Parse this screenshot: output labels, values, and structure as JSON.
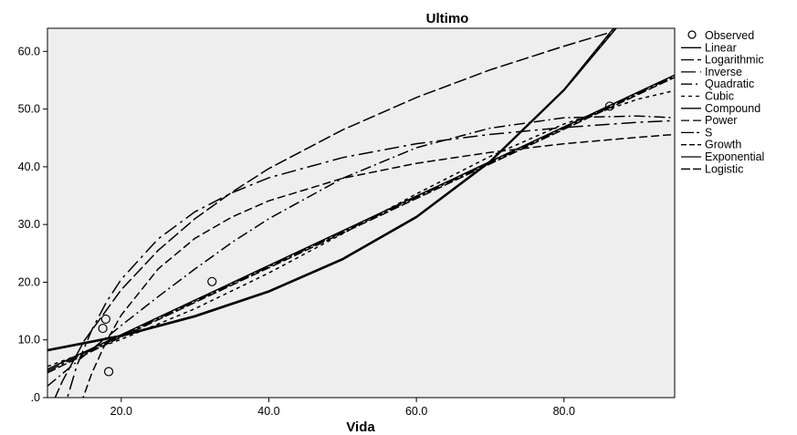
{
  "chart_data": {
    "type": "line",
    "title": "Ultimo",
    "xlabel": "Vida",
    "ylabel": "",
    "xlim": [
      10,
      95
    ],
    "ylim": [
      0,
      64
    ],
    "x_ticks": [
      20,
      40,
      60,
      80
    ],
    "x_tick_labels": [
      "20.0",
      "40.0",
      "60.0",
      "80.0"
    ],
    "y_ticks": [
      0,
      10,
      20,
      30,
      40,
      50,
      60
    ],
    "y_tick_labels": [
      ".0",
      "10.0",
      "20.0",
      "30.0",
      "40.0",
      "50.0",
      "60.0"
    ],
    "grid": false,
    "legend_position": "right",
    "plot_background": "#eeeeee",
    "observed": {
      "name": "Observed",
      "points": [
        {
          "x": 17.5,
          "y": 12.0
        },
        {
          "x": 17.9,
          "y": 13.6
        },
        {
          "x": 18.3,
          "y": 4.5
        },
        {
          "x": 32.3,
          "y": 20.1
        },
        {
          "x": 86.2,
          "y": 50.5
        }
      ]
    },
    "series": [
      {
        "name": "Linear",
        "dash": "",
        "points": [
          [
            10,
            4.9
          ],
          [
            20,
            10.9
          ],
          [
            30,
            16.9
          ],
          [
            40,
            22.9
          ],
          [
            50,
            28.9
          ],
          [
            60,
            34.9
          ],
          [
            70,
            40.9
          ],
          [
            80,
            46.9
          ],
          [
            90,
            52.9
          ],
          [
            95,
            55.9
          ]
        ]
      },
      {
        "name": "Logarithmic",
        "dash": "14,4",
        "points": [
          [
            10,
            -3.0
          ],
          [
            12,
            2.8
          ],
          [
            15,
            9.9
          ],
          [
            20,
            18.7
          ],
          [
            25,
            25.5
          ],
          [
            30,
            31.0
          ],
          [
            35,
            35.6
          ],
          [
            40,
            39.7
          ],
          [
            50,
            46.4
          ],
          [
            60,
            52.0
          ],
          [
            70,
            56.8
          ],
          [
            80,
            60.9
          ],
          [
            86,
            63.2
          ]
        ]
      },
      {
        "name": "Inverse",
        "dash": "16,5,3,5",
        "points": [
          [
            12,
            -3.0
          ],
          [
            14,
            5.6
          ],
          [
            16,
            11.7
          ],
          [
            18,
            16.6
          ],
          [
            20,
            20.5
          ],
          [
            25,
            27.5
          ],
          [
            30,
            32.2
          ],
          [
            35,
            35.5
          ],
          [
            40,
            38.1
          ],
          [
            50,
            41.6
          ],
          [
            60,
            44.0
          ],
          [
            70,
            45.6
          ],
          [
            80,
            46.8
          ],
          [
            90,
            47.7
          ],
          [
            95,
            48.0
          ]
        ]
      },
      {
        "name": "Quadratic",
        "dash": "12,4,2,4",
        "points": [
          [
            10,
            2.0
          ],
          [
            15,
            7.3
          ],
          [
            20,
            12.5
          ],
          [
            25,
            17.5
          ],
          [
            30,
            22.3
          ],
          [
            35,
            26.9
          ],
          [
            40,
            31.0
          ],
          [
            50,
            38.0
          ],
          [
            60,
            43.3
          ],
          [
            70,
            46.7
          ],
          [
            80,
            48.5
          ],
          [
            90,
            48.8
          ],
          [
            95,
            48.5
          ]
        ]
      },
      {
        "name": "Cubic",
        "dash": "4,4",
        "points": [
          [
            10,
            5.4
          ],
          [
            20,
            10.1
          ],
          [
            30,
            15.4
          ],
          [
            40,
            21.6
          ],
          [
            50,
            28.4
          ],
          [
            60,
            35.3
          ],
          [
            70,
            41.8
          ],
          [
            80,
            47.4
          ],
          [
            90,
            51.7
          ],
          [
            95,
            53.2
          ]
        ]
      },
      {
        "name": "Compound",
        "dash": "",
        "points": [
          [
            10,
            8.3
          ],
          [
            20,
            10.8
          ],
          [
            30,
            14.2
          ],
          [
            40,
            18.5
          ],
          [
            50,
            24.1
          ],
          [
            60,
            31.4
          ],
          [
            70,
            41.0
          ],
          [
            80,
            53.4
          ],
          [
            88,
            66.0
          ]
        ]
      },
      {
        "name": "Power",
        "dash": "9,4",
        "points": [
          [
            14,
            -3.0
          ],
          [
            16,
            4.2
          ],
          [
            18,
            9.8
          ],
          [
            20,
            14.3
          ],
          [
            25,
            22.3
          ],
          [
            30,
            27.6
          ],
          [
            35,
            31.3
          ],
          [
            40,
            34.1
          ],
          [
            50,
            38.0
          ],
          [
            60,
            40.6
          ],
          [
            70,
            42.5
          ],
          [
            80,
            44.0
          ],
          [
            90,
            45.1
          ],
          [
            95,
            45.6
          ]
        ]
      },
      {
        "name": "S",
        "dash": "14,3,3,3",
        "points": [
          [
            10,
            4.6
          ],
          [
            20,
            10.7
          ],
          [
            30,
            16.7
          ],
          [
            40,
            22.7
          ],
          [
            50,
            28.7
          ],
          [
            60,
            34.7
          ],
          [
            70,
            40.7
          ],
          [
            80,
            46.7
          ],
          [
            90,
            52.7
          ],
          [
            95,
            55.7
          ]
        ]
      },
      {
        "name": "Growth",
        "dash": "6,3",
        "points": [
          [
            10,
            8.2
          ],
          [
            20,
            10.7
          ],
          [
            30,
            14.1
          ],
          [
            40,
            18.4
          ],
          [
            50,
            24.0
          ],
          [
            60,
            31.3
          ],
          [
            70,
            40.9
          ],
          [
            80,
            53.3
          ],
          [
            88,
            65.5
          ]
        ]
      },
      {
        "name": "Exponential",
        "dash": "",
        "points": [
          [
            10,
            8.1
          ],
          [
            20,
            10.6
          ],
          [
            30,
            14.0
          ],
          [
            40,
            18.3
          ],
          [
            50,
            23.9
          ],
          [
            60,
            31.2
          ],
          [
            70,
            40.8
          ],
          [
            80,
            53.2
          ],
          [
            88,
            65.4
          ]
        ]
      },
      {
        "name": "Logistic",
        "dash": "10,3",
        "points": [
          [
            10,
            4.3
          ],
          [
            20,
            10.5
          ],
          [
            30,
            16.5
          ],
          [
            40,
            22.5
          ],
          [
            50,
            28.5
          ],
          [
            60,
            34.5
          ],
          [
            70,
            40.5
          ],
          [
            80,
            46.5
          ],
          [
            90,
            52.5
          ],
          [
            95,
            55.5
          ]
        ]
      }
    ]
  }
}
